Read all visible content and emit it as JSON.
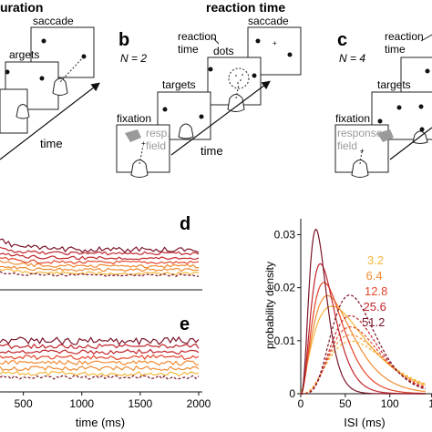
{
  "top": {
    "left_heading": "uration",
    "right_heading": "reaction time"
  },
  "panel_a": {
    "saccade": "saccade",
    "targets": "argets",
    "time": "time"
  },
  "panel_b": {
    "letter": "b",
    "n_label": "N = 2",
    "reaction": "reaction",
    "time": "time",
    "dots": "dots",
    "saccade": "saccade",
    "targets": "targets",
    "fixation": "fixation",
    "resp": "resp.",
    "field": "field"
  },
  "panel_c": {
    "letter": "c",
    "n_label": "N = 4",
    "reaction": "reaction",
    "time": "time",
    "targets": "targets",
    "fixation": "fixation",
    "response": "response",
    "field": "field"
  },
  "panel_d": {
    "letter": "d"
  },
  "panel_e": {
    "letter": "e"
  },
  "colors": {
    "c1": "#f4b63a",
    "c2": "#f08b32",
    "c3": "#e3462a",
    "c4": "#c0262d",
    "c5": "#7a1427",
    "gray": "#9a9a9a"
  },
  "chart_data": [
    {
      "type": "line",
      "panel": "d-e",
      "xlabel": "time (ms)",
      "x_ticks": [
        "500",
        "1000",
        "1500",
        "2000"
      ],
      "x": [
        300,
        2000
      ]
    },
    {
      "type": "line",
      "panel": "f",
      "xlabel": "ISI (ms)",
      "ylabel": "probability density",
      "x_ticks": [
        "0",
        "50",
        "100",
        "1"
      ],
      "y_ticks": [
        "0",
        "0.01",
        "0.02",
        "0.03"
      ],
      "xlim": [
        0,
        140
      ],
      "ylim": [
        0,
        0.033
      ],
      "series": [
        {
          "name": "3.2",
          "peak_x": 35,
          "peak_y": 0.0165
        },
        {
          "name": "6.4",
          "peak_x": 30,
          "peak_y": 0.0185
        },
        {
          "name": "12.8",
          "peak_x": 26,
          "peak_y": 0.021
        },
        {
          "name": "25.6",
          "peak_x": 22,
          "peak_y": 0.0245
        },
        {
          "name": "51.2",
          "peak_x": 17,
          "peak_y": 0.031
        }
      ]
    }
  ]
}
